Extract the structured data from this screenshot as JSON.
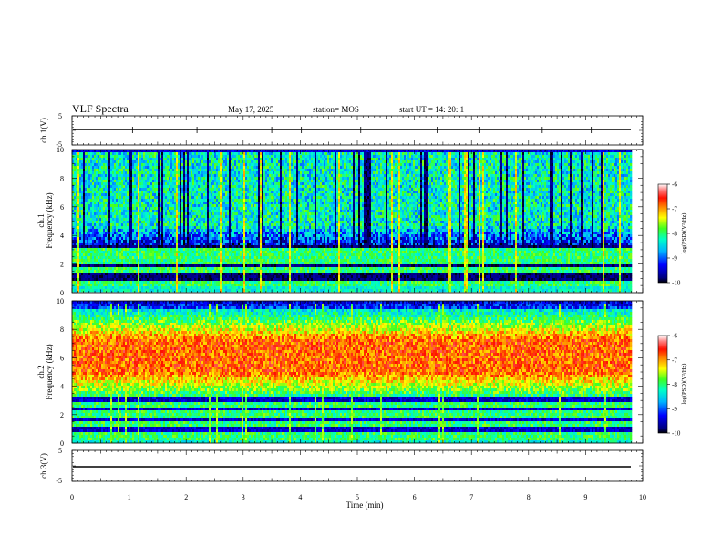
{
  "header": {
    "title": "VLF Spectra",
    "date": "May 17, 2025",
    "station": "station= MOS",
    "start_ut": "start  UT  =   14: 20: 1"
  },
  "chart_data": [
    {
      "type": "line",
      "panel": "ch1-waveform",
      "ylabel": "ch.1(V)",
      "ylim": [
        -5,
        5
      ],
      "xlim": [
        0,
        10
      ],
      "yticks": [
        "5",
        "-5"
      ],
      "series": [
        {
          "x": [
            0,
            9.83
          ],
          "y": [
            -1,
            -1
          ]
        }
      ]
    },
    {
      "type": "heatmap",
      "panel": "ch1-spectrogram",
      "ylabel_top": "ch.1",
      "ylabel": "Frequency  (kHz)",
      "ylim": [
        0,
        10
      ],
      "xlim": [
        0,
        10
      ],
      "data_xmax": 9.83,
      "yticks": [
        "0",
        "2",
        "4",
        "6",
        "8",
        "10"
      ],
      "colorbar": {
        "label": "log(PSD)(V²/Hz)",
        "range": [
          -10,
          -6
        ],
        "ticks": [
          "-6",
          "-7",
          "-8",
          "-9",
          "-10"
        ]
      },
      "bands_khz": [
        0.6,
        1.5,
        2.2,
        2.8
      ],
      "broadband_band_khz": [
        3.2,
        9.8
      ],
      "description_level": {
        "background": -10,
        "broadband": -8.3,
        "spikes": -7
      }
    },
    {
      "type": "heatmap",
      "panel": "ch2-spectrogram",
      "ylabel_top": "ch.2",
      "ylabel": "Frequency  (kHz)",
      "ylim": [
        0,
        10
      ],
      "xlim": [
        0,
        10
      ],
      "data_xmax": 9.83,
      "yticks": [
        "0",
        "2",
        "4",
        "6",
        "8",
        "10"
      ],
      "colorbar": {
        "label": "log(PSD)(V²/Hz)",
        "range": [
          -10,
          -6
        ],
        "ticks": [
          "-6",
          "-7",
          "-8",
          "-9",
          "-10"
        ]
      },
      "bands_khz": [
        0.5,
        1.4,
        2.0,
        2.7
      ],
      "peak_band_khz": [
        5.0,
        7.2
      ],
      "description_level": {
        "background": -10,
        "broadband": -8.0,
        "peak": -6.8
      }
    },
    {
      "type": "line",
      "panel": "ch3-waveform",
      "ylabel": "ch.3(V)",
      "ylim": [
        -5,
        5
      ],
      "xlim": [
        0,
        10
      ],
      "yticks": [
        "5",
        "-5"
      ],
      "xlabel": "Time  (min)",
      "xticks": [
        "0",
        "1",
        "2",
        "3",
        "4",
        "5",
        "6",
        "7",
        "8",
        "9",
        "10"
      ],
      "series": [
        {
          "x": [
            0,
            9.83
          ],
          "y": [
            -1,
            -1
          ]
        }
      ]
    }
  ]
}
